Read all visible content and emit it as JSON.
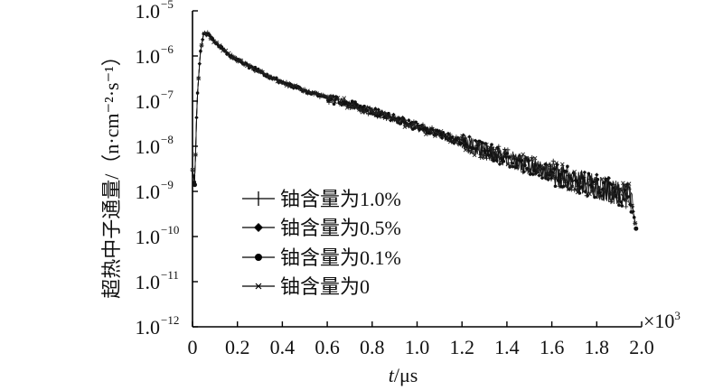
{
  "chart_data": {
    "type": "line",
    "xlabel": "t/μs",
    "xlabel_italic_part": "t",
    "xlabel_unit_part": "/μs",
    "x_scale_label": "×10",
    "x_scale_exponent": "3",
    "ylabel": "超热中子通量/（n·cm⁻²·s⁻¹）",
    "yscale": "log",
    "xlim": [
      0,
      2.0
    ],
    "ylim": [
      1e-12,
      1e-05
    ],
    "x_ticks": [
      "0",
      "0.2",
      "0.4",
      "0.6",
      "0.8",
      "1.0",
      "1.2",
      "1.4",
      "1.6",
      "1.8",
      "2.0"
    ],
    "y_ticks": [
      {
        "base": "1.0",
        "exp": "−12"
      },
      {
        "base": "1.0",
        "exp": "−11"
      },
      {
        "base": "1.0",
        "exp": "−10"
      },
      {
        "base": "1.0",
        "exp": "−9"
      },
      {
        "base": "1.0",
        "exp": "−8"
      },
      {
        "base": "1.0",
        "exp": "−7"
      },
      {
        "base": "1.0",
        "exp": "−6"
      },
      {
        "base": "1.0",
        "exp": "−5"
      }
    ],
    "legend_position": "lower-left",
    "grid": false,
    "series": [
      {
        "name": "铀含量为1.0%",
        "marker": "plus"
      },
      {
        "name": "铀含量为0.5%",
        "marker": "diamond"
      },
      {
        "name": "铀含量为0.1%",
        "marker": "circle"
      },
      {
        "name": "铀含量为0",
        "marker": "cross"
      }
    ],
    "curve_points": [
      [
        0.0,
        3e-09
      ],
      [
        0.01,
        1.5e-09
      ],
      [
        0.02,
        1e-07
      ],
      [
        0.035,
        1.2e-06
      ],
      [
        0.05,
        3.2e-06
      ],
      [
        0.07,
        3e-06
      ],
      [
        0.1,
        2e-06
      ],
      [
        0.15,
        1.2e-06
      ],
      [
        0.2,
        8e-07
      ],
      [
        0.3,
        4.5e-07
      ],
      [
        0.4,
        2.6e-07
      ],
      [
        0.5,
        1.7e-07
      ],
      [
        0.6,
        1.2e-07
      ],
      [
        0.7,
        8.5e-08
      ],
      [
        0.8,
        5.8e-08
      ],
      [
        0.9,
        4e-08
      ],
      [
        1.0,
        2.7e-08
      ],
      [
        1.1,
        1.8e-08
      ],
      [
        1.2,
        1.2e-08
      ],
      [
        1.3,
        8e-09
      ],
      [
        1.4,
        5.5e-09
      ],
      [
        1.5,
        3.8e-09
      ],
      [
        1.6,
        2.6e-09
      ],
      [
        1.7,
        1.8e-09
      ],
      [
        1.8,
        1.3e-09
      ],
      [
        1.9,
        9e-10
      ],
      [
        1.95,
        8e-10
      ],
      [
        1.975,
        1.5e-10
      ]
    ]
  }
}
